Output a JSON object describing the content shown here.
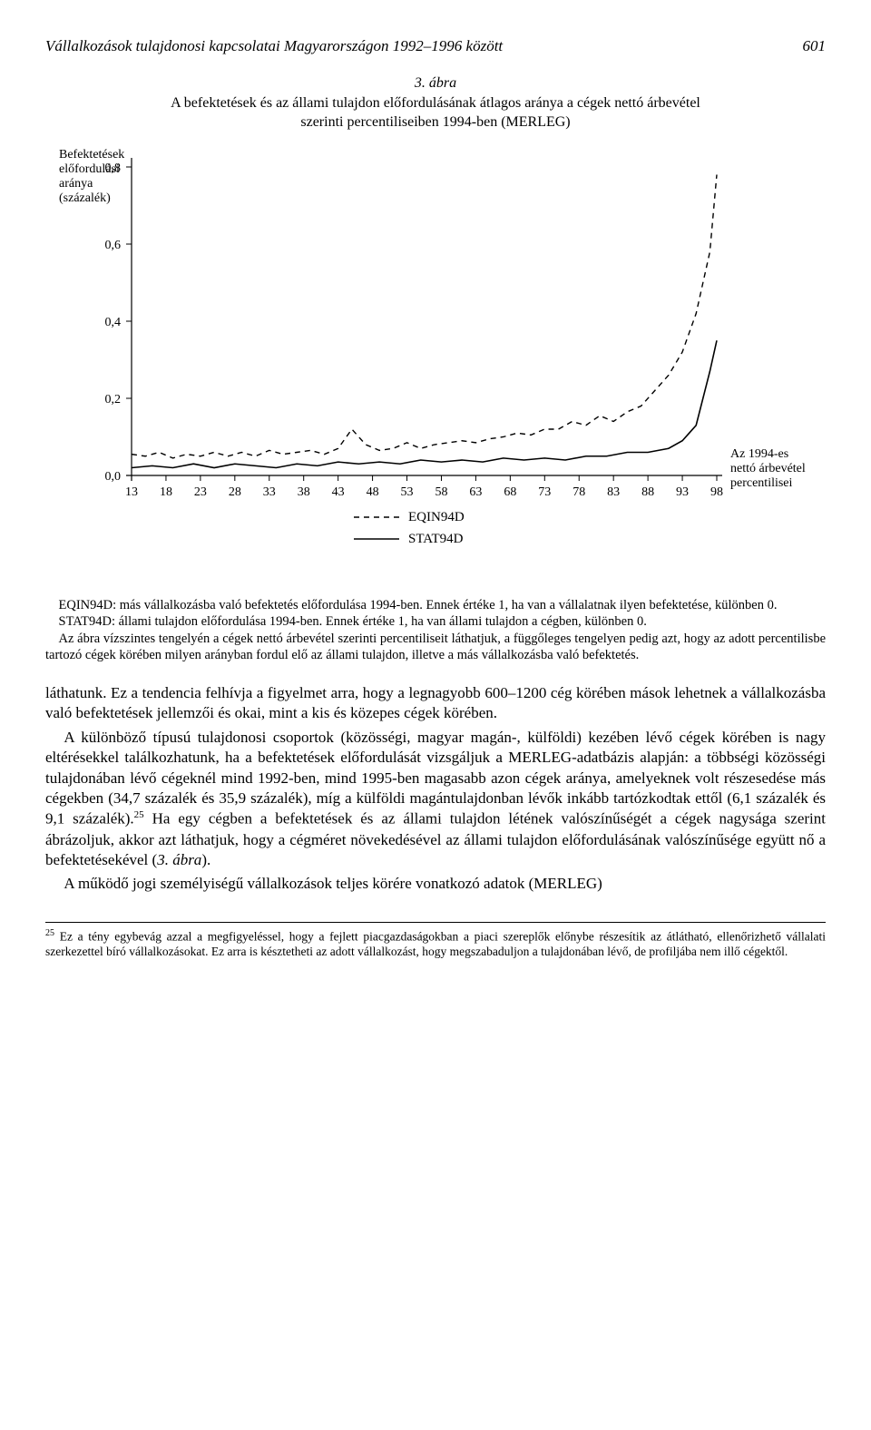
{
  "header": {
    "title": "Vállalkozások tulajdonosi kapcsolatai Magyarországon 1992–1996 között",
    "page": "601"
  },
  "figure": {
    "number": "3. ábra",
    "title_line1": "A befektetések és az állami tulajdon előfordulásának átlagos aránya a cégek nettó árbevétel",
    "title_line2": "szerinti percentiliseiben 1994-ben (MERLEG)",
    "y_label_1": "Befektetések",
    "y_label_2": "előfordulási",
    "y_label_3": "aránya",
    "y_label_4": "(százalék)",
    "x_label": "Az 1994-es nettó árbevétel percentilisei",
    "x_label_l1": "Az 1994-es",
    "x_label_l2": "nettó árbevétel",
    "x_label_l3": "percentilisei",
    "legend_dashed": "EQIN94D",
    "legend_solid": "STAT94D",
    "chart": {
      "type": "line",
      "xlim": [
        13,
        98
      ],
      "ylim": [
        0.0,
        0.8
      ],
      "yticks": [
        0.0,
        0.2,
        0.4,
        0.6,
        0.8
      ],
      "ytick_labels": [
        "0,0",
        "0,2",
        "0,4",
        "0,6",
        "0,8"
      ],
      "xticks": [
        13,
        18,
        23,
        28,
        33,
        38,
        43,
        48,
        53,
        58,
        63,
        68,
        73,
        78,
        83,
        88,
        93,
        98
      ],
      "background_color": "#ffffff",
      "axis_color": "#000000",
      "tick_fontsize": 14,
      "series": [
        {
          "name": "EQIN94D",
          "color": "#000000",
          "dash": "6 5",
          "width": 1.4,
          "x": [
            13,
            15,
            17,
            19,
            21,
            23,
            25,
            27,
            29,
            31,
            33,
            35,
            37,
            39,
            41,
            43,
            45,
            47,
            49,
            51,
            53,
            55,
            57,
            59,
            61,
            63,
            65,
            67,
            69,
            71,
            73,
            75,
            77,
            79,
            81,
            83,
            85,
            87,
            89,
            91,
            93,
            95,
            97,
            98
          ],
          "y": [
            0.055,
            0.05,
            0.06,
            0.045,
            0.055,
            0.05,
            0.06,
            0.05,
            0.06,
            0.05,
            0.065,
            0.055,
            0.06,
            0.065,
            0.055,
            0.07,
            0.12,
            0.08,
            0.065,
            0.07,
            0.085,
            0.07,
            0.08,
            0.085,
            0.09,
            0.085,
            0.095,
            0.1,
            0.11,
            0.105,
            0.12,
            0.12,
            0.14,
            0.13,
            0.155,
            0.14,
            0.165,
            0.18,
            0.22,
            0.26,
            0.32,
            0.42,
            0.58,
            0.78
          ]
        },
        {
          "name": "STAT94D",
          "color": "#000000",
          "dash": "none",
          "width": 1.6,
          "x": [
            13,
            16,
            19,
            22,
            25,
            28,
            31,
            34,
            37,
            40,
            43,
            46,
            49,
            52,
            55,
            58,
            61,
            64,
            67,
            70,
            73,
            76,
            79,
            82,
            85,
            88,
            91,
            93,
            95,
            97,
            98
          ],
          "y": [
            0.02,
            0.025,
            0.02,
            0.03,
            0.02,
            0.03,
            0.025,
            0.02,
            0.03,
            0.025,
            0.035,
            0.03,
            0.035,
            0.03,
            0.04,
            0.035,
            0.04,
            0.035,
            0.045,
            0.04,
            0.045,
            0.04,
            0.05,
            0.05,
            0.06,
            0.06,
            0.07,
            0.09,
            0.13,
            0.27,
            0.35
          ]
        }
      ]
    }
  },
  "caption": {
    "p1": "EQIN94D: más vállalkozásba való befektetés előfordulása 1994-ben. Ennek értéke 1, ha van a vállalatnak ilyen befektetése, különben 0.",
    "p2": "STAT94D: állami tulajdon előfordulása 1994-ben. Ennek értéke 1, ha van állami tulajdon a cégben, különben 0.",
    "p3": "Az ábra vízszintes tengelyén a cégek nettó árbevétel szerinti percentiliseit láthatjuk, a függőleges tengelyen pedig azt, hogy az adott percentilisbe tartozó cégek körében milyen arányban fordul elő az állami tulajdon, illetve a más vállalkozásba való befektetés."
  },
  "body": {
    "p1": "láthatunk. Ez a tendencia felhívja a figyelmet arra, hogy a legnagyobb 600–1200 cég körében mások lehetnek a vállalkozásba való befektetések jellemzői és okai, mint a kis és közepes cégek körében.",
    "p2a": "A különböző típusú tulajdonosi csoportok (közösségi, magyar magán-, külföldi) kezében lévő cégek körében is nagy eltérésekkel találkozhatunk, ha a befektetések előfordulását vizsgáljuk a MERLEG-adatbázis alapján: a többségi közösségi tulajdonában lévő cégeknél mind 1992-ben, mind 1995-ben magasabb azon cégek aránya, amelyeknek volt részesedése más cégekben (34,7 százalék és 35,9 százalék), míg a külföldi magántulajdonban lévők inkább tartózkodtak ettől (6,1 százalék és 9,1 százalék).",
    "p2b": " Ha egy cégben a befektetések és az állami tulajdon létének valószínűségét a cégek nagysága szerint ábrázoljuk, akkor azt láthatjuk, hogy a cégméret növekedésével az állami tulajdon előfordulásának valószínűsége együtt nő a befektetésekével (",
    "p2c": "3. ábra",
    "p2d": ").",
    "p3": "A működő jogi személyiségű vállalkozások teljes körére vonatkozó adatok (MERLEG)"
  },
  "footnote": {
    "num": "25",
    "text": " Ez a tény egybevág azzal a megfigyeléssel, hogy a fejlett piacgazdaságokban a piaci szereplők előnybe részesítik az átlátható, ellenőrizhető vállalati szerkezettel bíró vállalkozásokat. Ez arra is késztetheti az adott vállalkozást, hogy megszabaduljon a tulajdonában lévő, de profiljába nem illő cégektől."
  }
}
